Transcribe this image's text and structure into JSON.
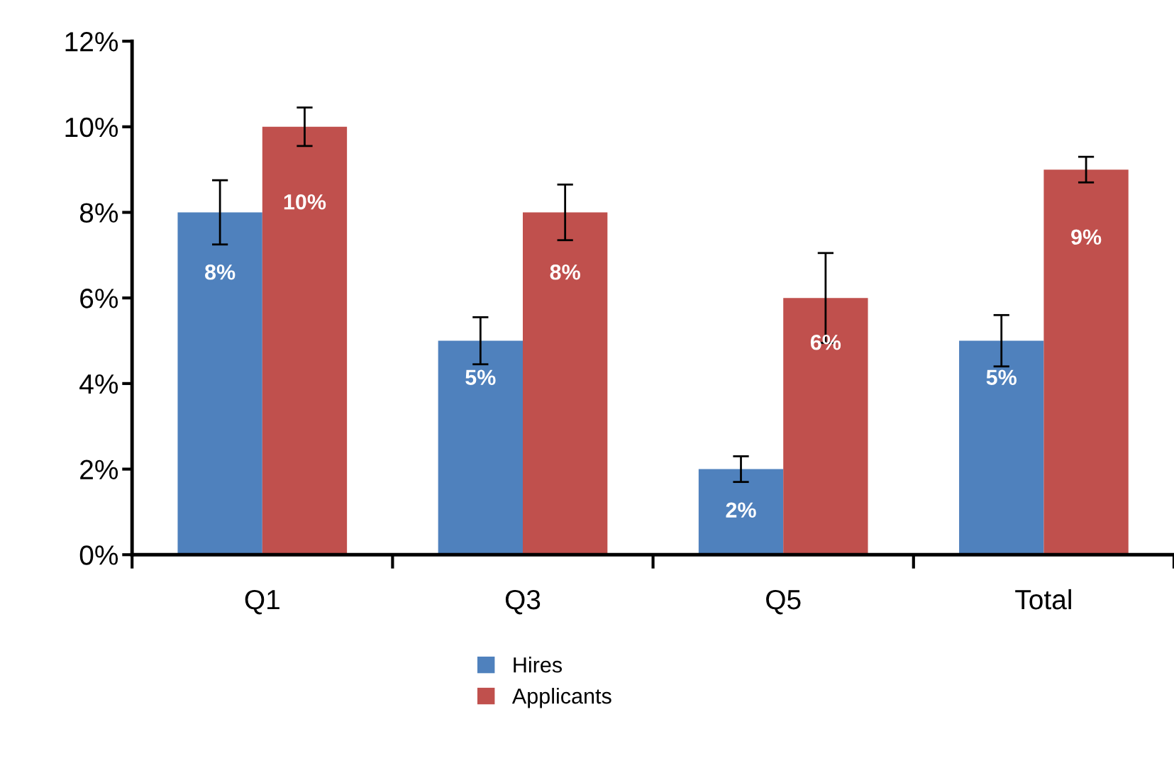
{
  "chart_data": {
    "type": "bar",
    "categories": [
      "Q1",
      "Q3",
      "Q5",
      "Total"
    ],
    "series": [
      {
        "name": "Hires",
        "color": "#4f81bd",
        "values": [
          8,
          5,
          2,
          5
        ],
        "errors": [
          0.75,
          0.55,
          0.3,
          0.6
        ],
        "value_labels": [
          "8%",
          "5%",
          "2%",
          "5%"
        ]
      },
      {
        "name": "Applicants",
        "color": "#c0504d",
        "values": [
          10,
          8,
          6,
          9
        ],
        "errors": [
          0.45,
          0.65,
          1.05,
          0.3
        ],
        "value_labels": [
          "10%",
          "8%",
          "6%",
          "9%"
        ]
      }
    ],
    "ylim": [
      0,
      12
    ],
    "yticks": [
      {
        "value": 0,
        "label": "0%"
      },
      {
        "value": 2,
        "label": "2%"
      },
      {
        "value": 4,
        "label": "4%"
      },
      {
        "value": 6,
        "label": "6%"
      },
      {
        "value": 8,
        "label": "8%"
      },
      {
        "value": 10,
        "label": "10%"
      },
      {
        "value": 12,
        "label": "12%"
      }
    ],
    "grid": false,
    "legend": "bottom"
  }
}
